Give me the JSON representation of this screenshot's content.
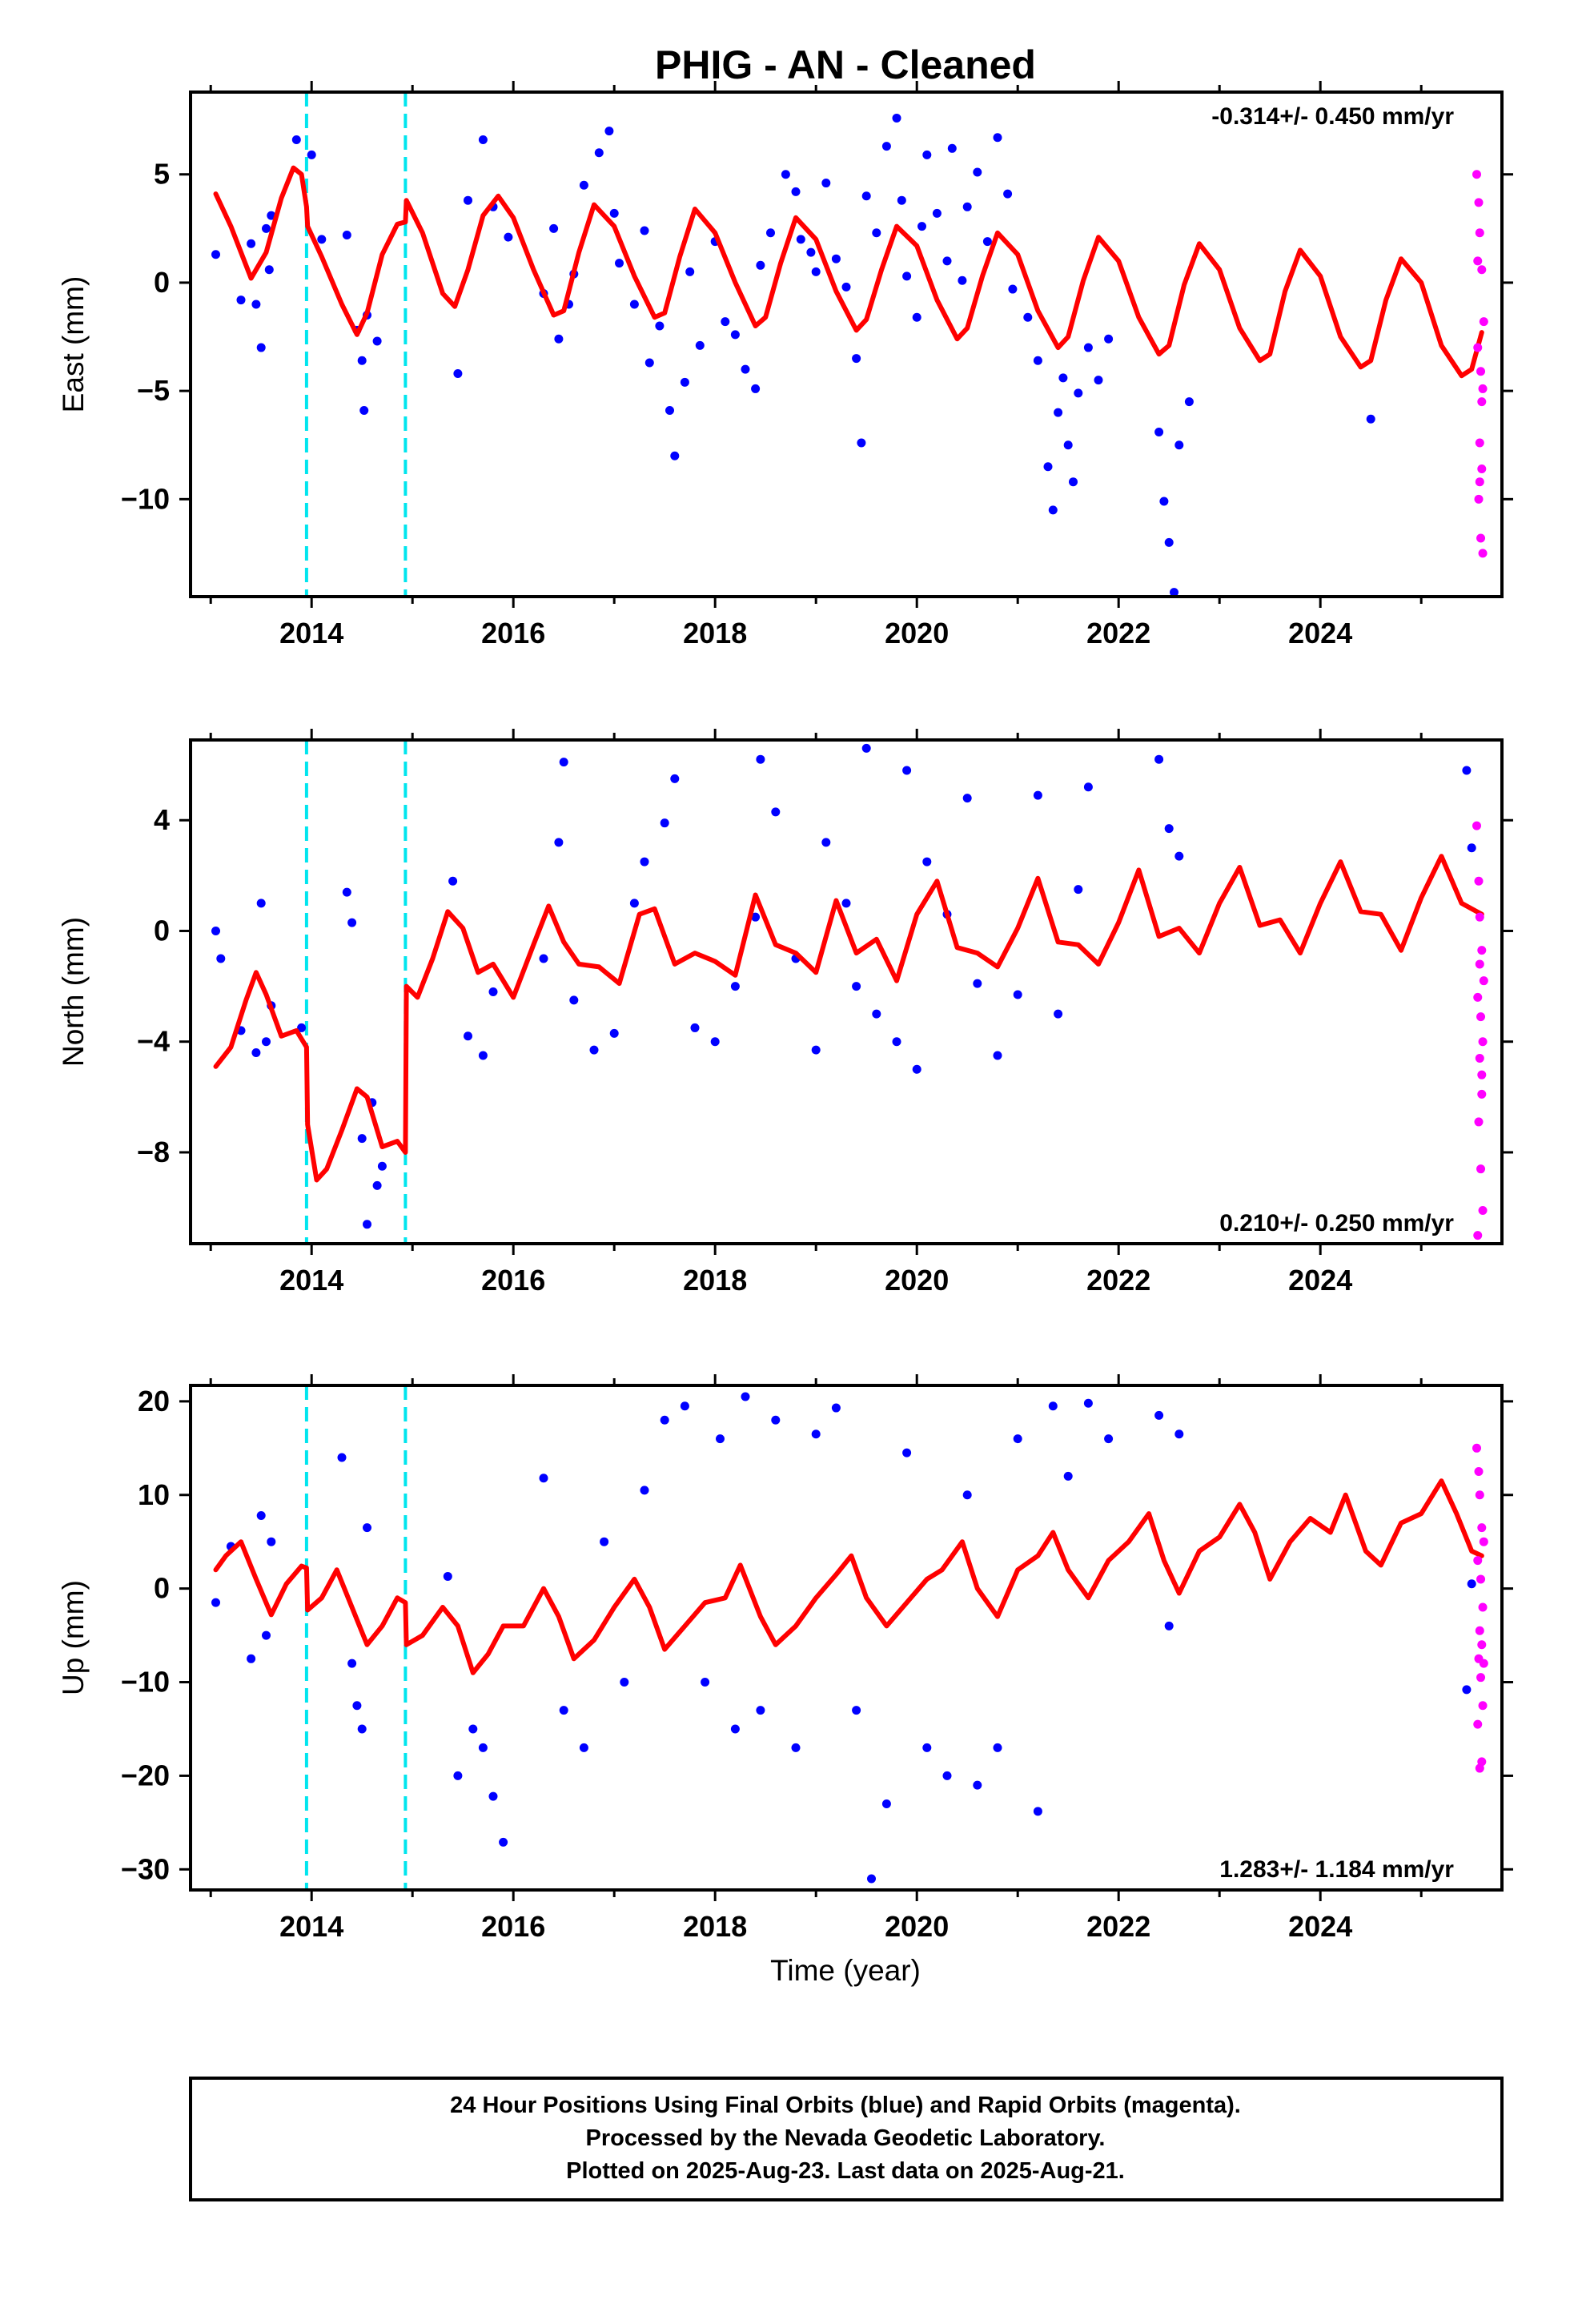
{
  "title": "PHIG  - AN - Cleaned",
  "xlabel": "Time (year)",
  "footer": {
    "lines": [
      "24 Hour Positions Using Final Orbits (blue) and Rapid Orbits (magenta).",
      "Processed by the Nevada Geodetic Laboratory.",
      "Plotted on 2025-Aug-23. Last data on 2025-Aug-21."
    ]
  },
  "colors": {
    "final_points": "#0000ff",
    "rapid_points": "#ff00ff",
    "model_line": "#ff0000",
    "equipment_change": "#00e5ee",
    "frame": "#000000"
  },
  "chart_data": [
    {
      "type": "scatter",
      "name": "east",
      "ylabel": "East (mm)",
      "rate": "-0.314+/- 0.450 mm/yr",
      "rate_position": "top-right",
      "xlim": [
        2012.8,
        2025.8
      ],
      "ylim": [
        -14.5,
        8.8
      ],
      "xticks": [
        2014,
        2016,
        2018,
        2020,
        2022,
        2024
      ],
      "yticks": [
        5,
        0,
        -5,
        -10
      ],
      "ytick_labels": [
        "5",
        "0",
        "−5",
        "−10"
      ],
      "discontinuities": [
        2013.95,
        2014.93
      ],
      "model": {
        "x": [
          2013.05,
          2013.2,
          2013.4,
          2013.55,
          2013.7,
          2013.82,
          2013.9,
          2013.95,
          2013.96,
          2014.1,
          2014.3,
          2014.45,
          2014.55,
          2014.7,
          2014.85,
          2014.93,
          2014.94,
          2015.1,
          2015.3,
          2015.42,
          2015.55,
          2015.7,
          2015.85,
          2016.0,
          2016.2,
          2016.4,
          2016.5,
          2016.65,
          2016.8,
          2017.0,
          2017.2,
          2017.4,
          2017.5,
          2017.65,
          2017.8,
          2018.0,
          2018.2,
          2018.4,
          2018.5,
          2018.65,
          2018.8,
          2019.0,
          2019.2,
          2019.4,
          2019.5,
          2019.65,
          2019.8,
          2020.0,
          2020.2,
          2020.4,
          2020.5,
          2020.65,
          2020.8,
          2021.0,
          2021.2,
          2021.4,
          2021.5,
          2021.65,
          2021.8,
          2022.0,
          2022.2,
          2022.4,
          2022.5,
          2022.65,
          2022.8,
          2023.0,
          2023.2,
          2023.4,
          2023.5,
          2023.65,
          2023.8,
          2024.0,
          2024.2,
          2024.4,
          2024.5,
          2024.65,
          2024.8,
          2025.0,
          2025.2,
          2025.4,
          2025.5,
          2025.6
        ],
        "y": [
          4.1,
          2.6,
          0.2,
          1.4,
          3.9,
          5.3,
          5.0,
          3.5,
          2.6,
          1.2,
          -1.0,
          -2.4,
          -1.4,
          1.3,
          2.7,
          2.8,
          3.8,
          2.3,
          -0.5,
          -1.1,
          0.6,
          3.1,
          4.0,
          3.0,
          0.6,
          -1.5,
          -1.3,
          1.4,
          3.6,
          2.6,
          0.3,
          -1.6,
          -1.4,
          1.2,
          3.4,
          2.3,
          0.0,
          -2.0,
          -1.6,
          0.9,
          3.0,
          2.0,
          -0.4,
          -2.2,
          -1.7,
          0.6,
          2.6,
          1.7,
          -0.8,
          -2.6,
          -2.1,
          0.3,
          2.3,
          1.3,
          -1.3,
          -3.0,
          -2.5,
          0.1,
          2.1,
          1.0,
          -1.6,
          -3.3,
          -2.9,
          -0.1,
          1.8,
          0.6,
          -2.1,
          -3.6,
          -3.3,
          -0.4,
          1.5,
          0.3,
          -2.5,
          -3.9,
          -3.6,
          -0.8,
          1.1,
          0.0,
          -2.9,
          -4.3,
          -4.0,
          -2.3
        ]
      },
      "final": {
        "x": [
          2013.05,
          2013.3,
          2013.45,
          2013.5,
          2013.6,
          2013.4,
          2013.55,
          2013.58,
          2014.0,
          2013.85,
          2014.1,
          2014.35,
          2014.45,
          2014.5,
          2014.52,
          2014.55,
          2014.65,
          2015.45,
          2015.55,
          2015.7,
          2015.8,
          2015.95,
          2016.3,
          2016.4,
          2016.45,
          2016.55,
          2016.6,
          2016.7,
          2016.85,
          2016.95,
          2017.0,
          2017.05,
          2017.2,
          2017.3,
          2017.35,
          2017.45,
          2017.55,
          2017.6,
          2017.7,
          2017.75,
          2017.85,
          2018.0,
          2018.1,
          2018.2,
          2018.3,
          2018.4,
          2018.45,
          2018.55,
          2018.7,
          2018.8,
          2018.85,
          2018.95,
          2019.0,
          2019.1,
          2019.2,
          2019.3,
          2019.4,
          2019.45,
          2019.5,
          2019.6,
          2019.7,
          2019.8,
          2019.85,
          2019.9,
          2020.0,
          2020.05,
          2020.1,
          2020.2,
          2020.3,
          2020.35,
          2020.45,
          2020.5,
          2020.6,
          2020.7,
          2020.8,
          2020.9,
          2020.95,
          2021.1,
          2021.2,
          2021.3,
          2021.35,
          2021.4,
          2021.45,
          2021.5,
          2021.55,
          2021.6,
          2021.7,
          2021.8,
          2021.9,
          2022.4,
          2022.45,
          2022.5,
          2022.55,
          2022.6,
          2022.7,
          2024.5
        ],
        "y": [
          1.3,
          -0.8,
          -1.0,
          -3.0,
          3.1,
          1.8,
          2.5,
          0.6,
          5.9,
          6.6,
          2.0,
          2.2,
          -2.2,
          -3.6,
          -5.9,
          -1.5,
          -2.7,
          -4.2,
          3.8,
          6.6,
          3.5,
          2.1,
          -0.5,
          2.5,
          -2.6,
          -1.0,
          0.4,
          4.5,
          6.0,
          7.0,
          3.2,
          0.9,
          -1.0,
          2.4,
          -3.7,
          -2.0,
          -5.9,
          -8.0,
          -4.6,
          0.5,
          -2.9,
          1.9,
          -1.8,
          -2.4,
          -4.0,
          -4.9,
          0.8,
          2.3,
          5.0,
          4.2,
          2.0,
          1.4,
          0.5,
          4.6,
          1.1,
          -0.2,
          -3.5,
          -7.4,
          4.0,
          2.3,
          6.3,
          7.6,
          3.8,
          0.3,
          -1.6,
          2.6,
          5.9,
          3.2,
          1.0,
          6.2,
          0.1,
          3.5,
          5.1,
          1.9,
          6.7,
          4.1,
          -0.3,
          -1.6,
          -3.6,
          -8.5,
          -10.5,
          -6.0,
          -4.4,
          -7.5,
          -9.2,
          -5.1,
          -3.0,
          -4.5,
          -2.6,
          -6.9,
          -10.1,
          -12.0,
          -14.3,
          -7.5,
          -5.5,
          -6.3
        ]
      },
      "rapid": {
        "x": [
          2025.55,
          2025.57,
          2025.58,
          2025.6,
          2025.62,
          2025.56,
          2025.59,
          2025.61,
          2025.58,
          2025.6,
          2025.57,
          2025.59,
          2025.61,
          2025.56,
          2025.6,
          2025.58
        ],
        "y": [
          5.0,
          3.7,
          2.3,
          0.6,
          -1.8,
          -3.0,
          -4.1,
          -4.9,
          -7.4,
          -8.6,
          -10.0,
          -11.8,
          -12.5,
          1.0,
          -5.5,
          -9.2
        ]
      }
    },
    {
      "type": "scatter",
      "name": "north",
      "ylabel": "North (mm)",
      "rate": "0.210+/- 0.250 mm/yr",
      "rate_position": "bottom-right",
      "xlim": [
        2012.8,
        2025.8
      ],
      "ylim": [
        -11.3,
        6.9
      ],
      "xticks": [
        2014,
        2016,
        2018,
        2020,
        2022,
        2024
      ],
      "yticks": [
        4,
        0,
        -4,
        -8
      ],
      "ytick_labels": [
        "4",
        "0",
        "−4",
        "−8"
      ],
      "discontinuities": [
        2013.95,
        2014.93
      ],
      "model": {
        "x": [
          2013.05,
          2013.2,
          2013.35,
          2013.45,
          2013.55,
          2013.7,
          2013.85,
          2013.95,
          2013.96,
          2014.05,
          2014.15,
          2014.3,
          2014.45,
          2014.55,
          2014.7,
          2014.85,
          2014.93,
          2014.94,
          2015.05,
          2015.2,
          2015.35,
          2015.5,
          2015.65,
          2015.8,
          2016.0,
          2016.2,
          2016.35,
          2016.5,
          2016.65,
          2016.85,
          2017.05,
          2017.25,
          2017.4,
          2017.6,
          2017.8,
          2018.0,
          2018.2,
          2018.4,
          2018.6,
          2018.8,
          2019.0,
          2019.2,
          2019.4,
          2019.6,
          2019.8,
          2020.0,
          2020.2,
          2020.4,
          2020.6,
          2020.8,
          2021.0,
          2021.2,
          2021.4,
          2021.6,
          2021.8,
          2022.0,
          2022.2,
          2022.4,
          2022.6,
          2022.8,
          2023.0,
          2023.2,
          2023.4,
          2023.6,
          2023.8,
          2024.0,
          2024.2,
          2024.4,
          2024.6,
          2024.8,
          2025.0,
          2025.2,
          2025.4,
          2025.55,
          2025.6
        ],
        "y": [
          -4.9,
          -4.2,
          -2.5,
          -1.5,
          -2.3,
          -3.8,
          -3.6,
          -4.2,
          -7.0,
          -9.0,
          -8.6,
          -7.2,
          -5.7,
          -6.0,
          -7.8,
          -7.6,
          -8.0,
          -2.0,
          -2.4,
          -1.0,
          0.7,
          0.1,
          -1.5,
          -1.2,
          -2.4,
          -0.5,
          0.9,
          -0.4,
          -1.2,
          -1.3,
          -1.9,
          0.6,
          0.8,
          -1.2,
          -0.8,
          -1.1,
          -1.6,
          1.3,
          -0.5,
          -0.8,
          -1.5,
          1.1,
          -0.8,
          -0.3,
          -1.8,
          0.6,
          1.8,
          -0.6,
          -0.8,
          -1.3,
          0.1,
          1.9,
          -0.4,
          -0.5,
          -1.2,
          0.3,
          2.2,
          -0.2,
          0.1,
          -0.8,
          1.0,
          2.3,
          0.2,
          0.4,
          -0.8,
          1.0,
          2.5,
          0.7,
          0.6,
          -0.7,
          1.2,
          2.7,
          1.0,
          0.7,
          0.6
        ]
      },
      "final": {
        "x": [
          2013.05,
          2013.1,
          2013.3,
          2013.5,
          2013.55,
          2013.45,
          2013.6,
          2013.9,
          2014.35,
          2014.4,
          2014.5,
          2014.55,
          2014.6,
          2014.65,
          2014.7,
          2015.4,
          2015.55,
          2015.7,
          2015.8,
          2016.3,
          2016.45,
          2016.5,
          2016.6,
          2016.8,
          2017.0,
          2017.2,
          2017.3,
          2017.5,
          2017.6,
          2017.8,
          2018.0,
          2018.2,
          2018.4,
          2018.45,
          2018.6,
          2018.8,
          2019.0,
          2019.1,
          2019.3,
          2019.4,
          2019.5,
          2019.6,
          2019.8,
          2019.9,
          2020.0,
          2020.1,
          2020.3,
          2020.5,
          2020.6,
          2020.8,
          2021.0,
          2021.2,
          2021.4,
          2021.6,
          2021.7,
          2022.4,
          2022.5,
          2022.6,
          2025.45,
          2025.5
        ],
        "y": [
          0.0,
          -1.0,
          -3.6,
          1.0,
          -4.0,
          -4.4,
          -2.7,
          -3.5,
          1.4,
          0.3,
          -7.5,
          -10.6,
          -6.2,
          -9.2,
          -8.5,
          1.8,
          -3.8,
          -4.5,
          -2.2,
          -1.0,
          3.2,
          6.1,
          -2.5,
          -4.3,
          -3.7,
          1.0,
          2.5,
          3.9,
          5.5,
          -3.5,
          -4.0,
          -2.0,
          0.5,
          6.2,
          4.3,
          -1.0,
          -4.3,
          3.2,
          1.0,
          -2.0,
          6.6,
          -3.0,
          -4.0,
          5.8,
          -5.0,
          2.5,
          0.6,
          4.8,
          -1.9,
          -4.5,
          -2.3,
          4.9,
          -3.0,
          1.5,
          5.2,
          6.2,
          3.7,
          2.7,
          5.8,
          3.0
        ]
      },
      "rapid": {
        "x": [
          2025.55,
          2025.57,
          2025.58,
          2025.6,
          2025.62,
          2025.56,
          2025.59,
          2025.61,
          2025.58,
          2025.6,
          2025.57,
          2025.59,
          2025.61,
          2025.56,
          2025.6,
          2025.58
        ],
        "y": [
          3.8,
          1.8,
          0.5,
          -0.7,
          -1.8,
          -2.4,
          -3.1,
          -4.0,
          -4.6,
          -5.9,
          -6.9,
          -8.6,
          -10.1,
          -11.0,
          -5.2,
          -1.2
        ]
      }
    },
    {
      "type": "scatter",
      "name": "up",
      "ylabel": "Up (mm)",
      "rate": "1.283+/- 1.184 mm/yr",
      "rate_position": "bottom-right",
      "xlim": [
        2012.8,
        2025.8
      ],
      "ylim": [
        -32.2,
        21.7
      ],
      "xticks": [
        2014,
        2016,
        2018,
        2020,
        2022,
        2024
      ],
      "yticks": [
        20,
        10,
        0,
        -10,
        -20,
        -30
      ],
      "ytick_labels": [
        "20",
        "10",
        "0",
        "−10",
        "−20",
        "−30"
      ],
      "discontinuities": [
        2013.95,
        2014.93
      ],
      "model": {
        "x": [
          2013.05,
          2013.15,
          2013.3,
          2013.45,
          2013.6,
          2013.75,
          2013.9,
          2013.95,
          2013.96,
          2014.1,
          2014.25,
          2014.4,
          2014.55,
          2014.7,
          2014.85,
          2014.93,
          2014.94,
          2015.1,
          2015.3,
          2015.45,
          2015.6,
          2015.75,
          2015.9,
          2016.1,
          2016.3,
          2016.45,
          2016.6,
          2016.8,
          2017.0,
          2017.2,
          2017.35,
          2017.5,
          2017.7,
          2017.9,
          2018.1,
          2018.25,
          2018.45,
          2018.6,
          2018.8,
          2019.0,
          2019.2,
          2019.35,
          2019.5,
          2019.7,
          2019.9,
          2020.1,
          2020.25,
          2020.45,
          2020.6,
          2020.8,
          2021.0,
          2021.2,
          2021.35,
          2021.5,
          2021.7,
          2021.9,
          2022.1,
          2022.3,
          2022.45,
          2022.6,
          2022.8,
          2023.0,
          2023.2,
          2023.35,
          2023.5,
          2023.7,
          2023.9,
          2024.1,
          2024.25,
          2024.45,
          2024.6,
          2024.8,
          2025.0,
          2025.2,
          2025.35,
          2025.5,
          2025.6
        ],
        "y": [
          2.0,
          3.5,
          5.0,
          1.0,
          -2.8,
          0.5,
          2.4,
          2.2,
          -2.3,
          -1.0,
          2.0,
          -2.0,
          -6.0,
          -4.0,
          -1.0,
          -1.5,
          -6.0,
          -5.0,
          -2.0,
          -4.0,
          -9.0,
          -7.0,
          -4.0,
          -4.0,
          0.0,
          -3.0,
          -7.5,
          -5.5,
          -2.0,
          1.0,
          -2.0,
          -6.5,
          -4.0,
          -1.5,
          -1.0,
          2.5,
          -3.0,
          -6.0,
          -4.0,
          -1.0,
          1.5,
          3.5,
          -1.0,
          -4.0,
          -1.5,
          1.0,
          2.0,
          5.0,
          0.0,
          -3.0,
          2.0,
          3.5,
          6.0,
          2.0,
          -1.0,
          3.0,
          5.0,
          8.0,
          3.0,
          -0.5,
          4.0,
          5.5,
          9.0,
          6.0,
          1.0,
          5.0,
          7.5,
          6.0,
          10.0,
          4.0,
          2.5,
          7.0,
          8.0,
          11.5,
          8.0,
          4.0,
          3.5
        ]
      },
      "final": {
        "x": [
          2013.05,
          2013.2,
          2013.4,
          2013.5,
          2013.55,
          2013.6,
          2014.3,
          2014.4,
          2014.45,
          2014.5,
          2014.55,
          2015.35,
          2015.45,
          2015.6,
          2015.7,
          2015.8,
          2015.9,
          2016.3,
          2016.5,
          2016.7,
          2016.9,
          2017.1,
          2017.3,
          2017.5,
          2017.7,
          2017.9,
          2018.05,
          2018.2,
          2018.3,
          2018.45,
          2018.6,
          2018.8,
          2019.0,
          2019.2,
          2019.4,
          2019.55,
          2019.7,
          2019.9,
          2020.1,
          2020.3,
          2020.5,
          2020.6,
          2020.8,
          2021.0,
          2021.2,
          2021.35,
          2021.5,
          2021.7,
          2021.9,
          2022.4,
          2022.5,
          2022.6,
          2025.45,
          2025.5
        ],
        "y": [
          -1.5,
          4.5,
          -7.5,
          7.8,
          -5.0,
          5.0,
          14.0,
          -8.0,
          -12.5,
          -15.0,
          6.5,
          1.3,
          -20.0,
          -15.0,
          -17.0,
          -22.2,
          -27.1,
          11.8,
          -13.0,
          -17.0,
          5.0,
          -10.0,
          10.5,
          18.0,
          19.5,
          -10.0,
          16.0,
          -15.0,
          20.5,
          -13.0,
          18.0,
          -17.0,
          16.5,
          19.3,
          -13.0,
          -31.0,
          -23.0,
          14.5,
          -17.0,
          -20.0,
          10.0,
          -21.0,
          -17.0,
          16.0,
          -23.8,
          19.5,
          12.0,
          19.8,
          16.0,
          18.5,
          -4.0,
          16.5,
          -10.8,
          0.5
        ]
      },
      "rapid": {
        "x": [
          2025.55,
          2025.57,
          2025.58,
          2025.6,
          2025.62,
          2025.56,
          2025.59,
          2025.61,
          2025.58,
          2025.6,
          2025.57,
          2025.59,
          2025.61,
          2025.56,
          2025.6,
          2025.58,
          2025.62
        ],
        "y": [
          15.0,
          12.5,
          10.0,
          6.5,
          5.0,
          3.0,
          1.0,
          -2.0,
          -4.5,
          -6.0,
          -7.5,
          -9.5,
          -12.5,
          -14.5,
          -18.5,
          -19.2,
          -8.0
        ]
      }
    }
  ]
}
